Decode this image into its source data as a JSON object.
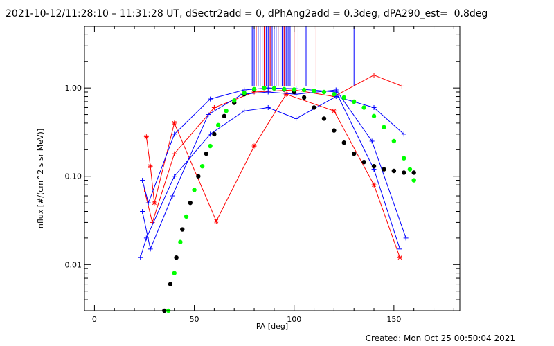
{
  "header": {
    "title": "2021-10-12/11:28:10 – 11:31:28 UT, dSectr2add = 0, dPhAng2add = 0.3deg, dPA290_est=  0.8deg"
  },
  "footer": {
    "created": "Created: Mon Oct 25 00:50:04 2021"
  },
  "chart_data": {
    "type": "line",
    "xlabel": "PA [deg]",
    "ylabel": "nflux [#/(cm^2 s sr MeV)]",
    "xlim": [
      -5,
      183
    ],
    "ylim": [
      0.003,
      5.0
    ],
    "yscale": "log",
    "grid": false,
    "x_ticks": [
      0,
      50,
      100,
      150
    ],
    "x_tick_labels": [
      "0",
      "50",
      "100",
      "150"
    ],
    "y_ticks": [
      0.01,
      0.1,
      1.0
    ],
    "y_tick_labels": [
      "0.01",
      "0.10",
      "1.00"
    ],
    "colors": {
      "red": "#ff0000",
      "blue": "#0000ff",
      "black": "#000000",
      "green": "#00ff00"
    },
    "series": [
      {
        "color": "red",
        "marker": "asterisk",
        "x": [
          26,
          28,
          30,
          40,
          61,
          80,
          96,
          120,
          140,
          153
        ],
        "y": [
          0.28,
          0.13,
          0.05,
          0.4,
          0.031,
          0.22,
          0.85,
          0.55,
          0.08,
          0.012
        ]
      },
      {
        "color": "red",
        "marker": "plus",
        "x": [
          25,
          29,
          40,
          60,
          80,
          100,
          120,
          140,
          154
        ],
        "y": [
          0.07,
          0.03,
          0.18,
          0.6,
          0.9,
          0.95,
          0.8,
          1.4,
          1.05
        ]
      },
      {
        "color": "blue",
        "marker": "plus",
        "x": [
          24,
          27,
          40,
          58,
          75,
          87,
          101,
          121,
          140,
          153
        ],
        "y": [
          0.09,
          0.05,
          0.3,
          0.75,
          0.95,
          1.0,
          0.98,
          0.9,
          0.12,
          0.015
        ]
      },
      {
        "color": "blue",
        "marker": "plus",
        "x": [
          23,
          26,
          40,
          58,
          75,
          87,
          101,
          121,
          140,
          155
        ],
        "y": [
          0.012,
          0.02,
          0.1,
          0.3,
          0.55,
          0.6,
          0.45,
          0.8,
          0.6,
          0.3
        ]
      },
      {
        "color": "blue",
        "marker": "plus",
        "x": [
          24,
          28,
          39,
          57,
          74,
          87,
          101,
          121,
          139,
          156
        ],
        "y": [
          0.04,
          0.015,
          0.06,
          0.5,
          0.85,
          0.9,
          0.85,
          0.95,
          0.25,
          0.02
        ]
      },
      {
        "color": "black",
        "marker": "dot",
        "x": [
          35,
          38,
          41,
          44,
          48,
          52,
          56,
          60,
          65,
          70,
          75,
          80,
          85,
          90,
          95,
          100,
          105,
          110,
          115,
          120,
          125,
          130,
          135,
          140,
          145,
          150,
          155,
          160
        ],
        "y": [
          0.003,
          0.006,
          0.012,
          0.025,
          0.05,
          0.1,
          0.18,
          0.3,
          0.48,
          0.68,
          0.85,
          0.96,
          1.0,
          0.99,
          0.96,
          0.9,
          0.78,
          0.6,
          0.45,
          0.33,
          0.24,
          0.18,
          0.145,
          0.13,
          0.12,
          0.115,
          0.11,
          0.11
        ]
      },
      {
        "color": "green",
        "marker": "dot",
        "x": [
          37,
          40,
          43,
          46,
          50,
          54,
          58,
          62,
          66,
          70,
          75,
          80,
          85,
          90,
          95,
          100,
          105,
          110,
          115,
          120,
          125,
          130,
          135,
          140,
          145,
          150,
          155,
          158,
          160
        ],
        "y": [
          0.003,
          0.008,
          0.018,
          0.035,
          0.07,
          0.13,
          0.22,
          0.38,
          0.55,
          0.72,
          0.88,
          0.97,
          1.0,
          0.99,
          0.97,
          0.96,
          0.95,
          0.93,
          0.9,
          0.85,
          0.78,
          0.7,
          0.6,
          0.48,
          0.36,
          0.25,
          0.16,
          0.12,
          0.09
        ]
      }
    ],
    "vertical_lines": [
      {
        "color": "blue",
        "x": [
          79,
          80,
          82,
          83,
          84,
          85,
          86,
          87,
          88,
          89,
          90,
          91,
          92,
          93,
          94,
          95,
          96,
          97,
          98,
          106,
          130
        ]
      },
      {
        "color": "red",
        "x": [
          81,
          85,
          88,
          92,
          95,
          100,
          102,
          111
        ]
      }
    ]
  }
}
